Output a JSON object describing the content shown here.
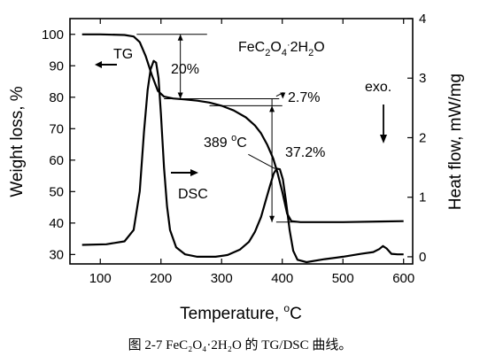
{
  "chart_data": {
    "type": "line",
    "formula": {
      "pre": "FeC",
      "s1": "2",
      "mid": "O",
      "s2": "4",
      "dot": "·",
      "post": "2H",
      "s3": "2",
      "end": "O"
    },
    "xlabel": "Temperature, ",
    "xlabel_unit": "oC",
    "ylabel_left": "Weight loss, %",
    "ylabel_right": "Heat flow, mW/mg",
    "xlim": [
      50,
      615
    ],
    "ylim_left": [
      27,
      105
    ],
    "ylim_right": [
      -0.12,
      4.0
    ],
    "x_ticks": [
      100,
      200,
      300,
      400,
      500,
      600
    ],
    "y_ticks_left": [
      30,
      40,
      50,
      60,
      70,
      80,
      90,
      100
    ],
    "y_ticks_right": [
      0,
      1,
      2,
      3,
      4
    ],
    "series": [
      {
        "name": "TG",
        "axis": "left",
        "points": [
          [
            70,
            100
          ],
          [
            100,
            100
          ],
          [
            140,
            99.8
          ],
          [
            155,
            99.3
          ],
          [
            165,
            97.5
          ],
          [
            175,
            93
          ],
          [
            185,
            87
          ],
          [
            195,
            82
          ],
          [
            205,
            80.2
          ],
          [
            220,
            79.6
          ],
          [
            240,
            79.3
          ],
          [
            260,
            78.9
          ],
          [
            280,
            78.3
          ],
          [
            300,
            77.3
          ],
          [
            320,
            75.8
          ],
          [
            340,
            73.6
          ],
          [
            355,
            71
          ],
          [
            365,
            68.5
          ],
          [
            375,
            65
          ],
          [
            385,
            60.5
          ],
          [
            392,
            56
          ],
          [
            400,
            50
          ],
          [
            408,
            43
          ],
          [
            415,
            40.6
          ],
          [
            430,
            40.3
          ],
          [
            500,
            40.3
          ],
          [
            560,
            40.5
          ],
          [
            600,
            40.6
          ]
        ]
      },
      {
        "name": "DSC",
        "axis": "right",
        "points": [
          [
            70,
            0.2
          ],
          [
            110,
            0.21
          ],
          [
            140,
            0.26
          ],
          [
            155,
            0.45
          ],
          [
            165,
            1.1
          ],
          [
            172,
            2.1
          ],
          [
            178,
            2.8
          ],
          [
            183,
            3.15
          ],
          [
            188,
            3.29
          ],
          [
            192,
            3.26
          ],
          [
            196,
            3.0
          ],
          [
            200,
            2.4
          ],
          [
            205,
            1.5
          ],
          [
            210,
            0.85
          ],
          [
            215,
            0.45
          ],
          [
            225,
            0.16
          ],
          [
            240,
            0.04
          ],
          [
            260,
            0.0
          ],
          [
            290,
            0.0
          ],
          [
            310,
            0.03
          ],
          [
            330,
            0.12
          ],
          [
            345,
            0.25
          ],
          [
            355,
            0.42
          ],
          [
            365,
            0.67
          ],
          [
            372,
            0.92
          ],
          [
            380,
            1.2
          ],
          [
            386,
            1.4
          ],
          [
            391,
            1.48
          ],
          [
            396,
            1.47
          ],
          [
            401,
            1.3
          ],
          [
            406,
            0.95
          ],
          [
            412,
            0.45
          ],
          [
            418,
            0.1
          ],
          [
            425,
            -0.05
          ],
          [
            440,
            -0.09
          ],
          [
            470,
            -0.04
          ],
          [
            500,
            0.0
          ],
          [
            530,
            0.05
          ],
          [
            550,
            0.08
          ],
          [
            560,
            0.13
          ],
          [
            566,
            0.18
          ],
          [
            572,
            0.14
          ],
          [
            580,
            0.05
          ],
          [
            590,
            0.04
          ],
          [
            600,
            0.04
          ]
        ]
      }
    ],
    "annotations": {
      "tg_label": "TG",
      "dsc_label": "DSC",
      "step1": "20%",
      "step2": "2.7%",
      "step3": "37.2%",
      "peak_temp": "389 ",
      "peak_unit": "oC",
      "exo": "exo."
    },
    "caption": "图 2-7 FeC₂O₄·2H₂O 的 TG/DSC 曲线。"
  }
}
